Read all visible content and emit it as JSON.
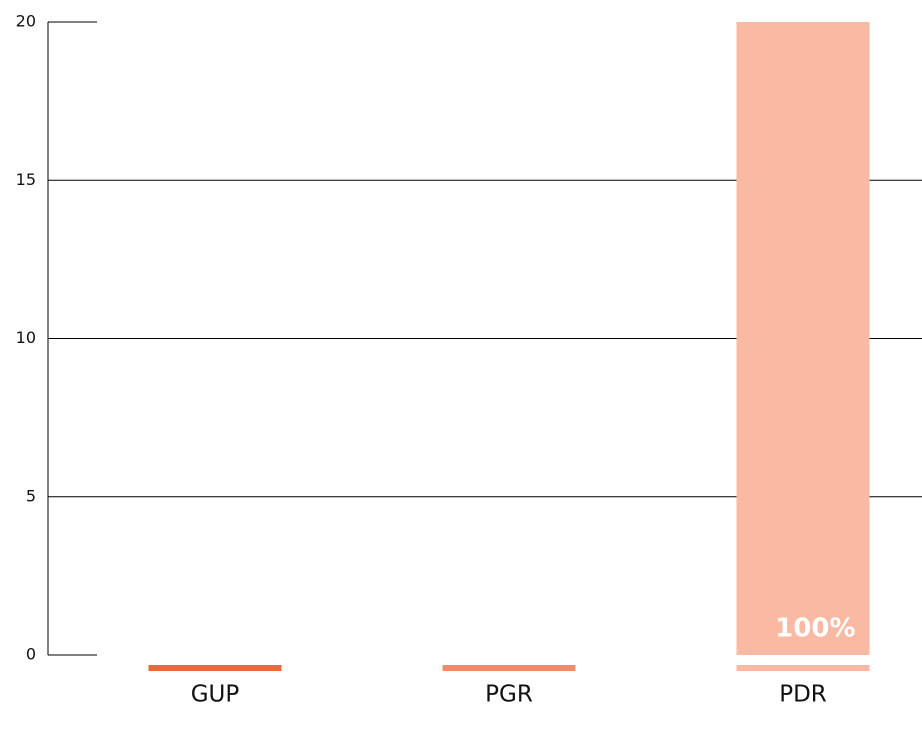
{
  "chart_data": {
    "type": "bar",
    "categories": [
      "GUP",
      "PGR",
      "PDR"
    ],
    "values": [
      0,
      0,
      20
    ],
    "colors": [
      "#e8693c",
      "#f08c6c",
      "#f9b9a3"
    ],
    "annotation": "100%",
    "ylim": [
      0,
      20
    ],
    "yticks": [
      0,
      5,
      10,
      15,
      20
    ],
    "grid": true
  }
}
